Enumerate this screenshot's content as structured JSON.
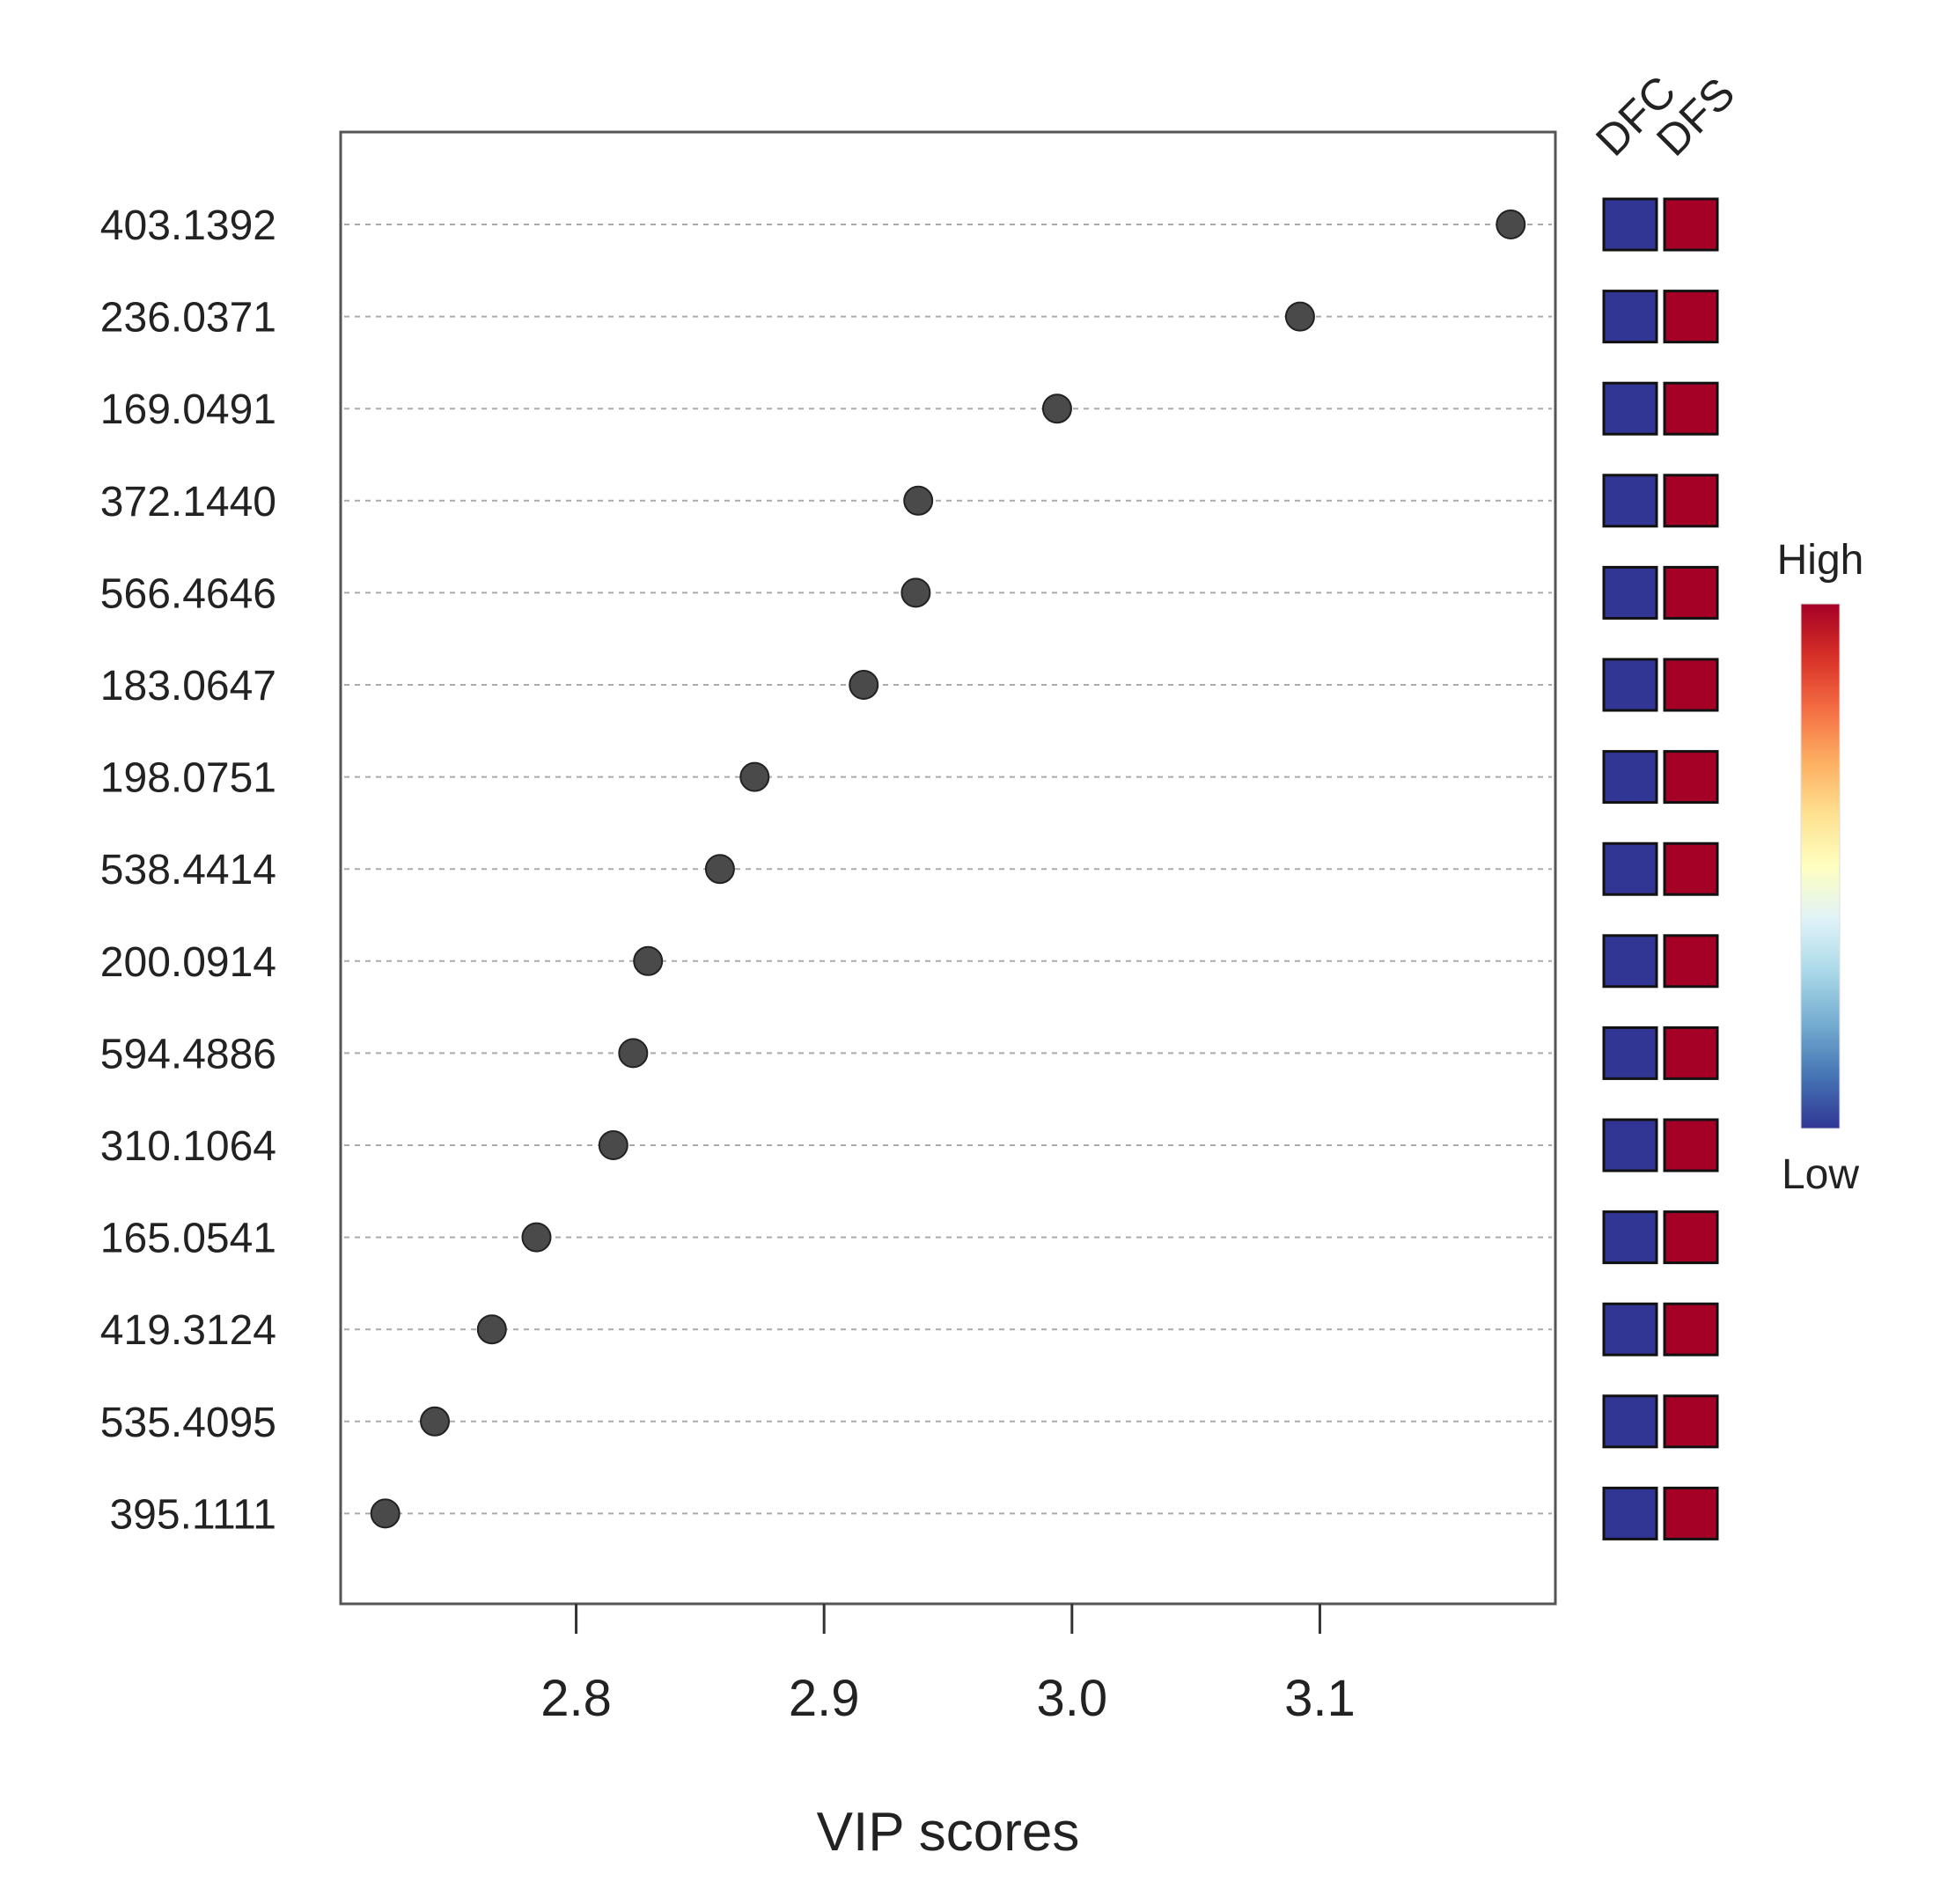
{
  "chart_data": {
    "type": "scatter",
    "subtype": "vip-dot-plot",
    "title": "",
    "xlabel": "VIP scores",
    "ylabel": "",
    "xlim": [
      2.705,
      3.195
    ],
    "xticks": [
      2.8,
      2.9,
      3.0,
      3.1
    ],
    "xtick_labels": [
      "2.8",
      "2.9",
      "3.0",
      "3.1"
    ],
    "grid": "horizontal dashed",
    "features": [
      {
        "name": "403.1392",
        "vip": 3.177,
        "DFC": "low",
        "DFS": "high"
      },
      {
        "name": "236.0371",
        "vip": 3.092,
        "DFC": "low",
        "DFS": "high"
      },
      {
        "name": "169.0491",
        "vip": 2.994,
        "DFC": "low",
        "DFS": "high"
      },
      {
        "name": "372.1440",
        "vip": 2.938,
        "DFC": "low",
        "DFS": "high"
      },
      {
        "name": "566.4646",
        "vip": 2.937,
        "DFC": "low",
        "DFS": "high"
      },
      {
        "name": "183.0647",
        "vip": 2.916,
        "DFC": "low",
        "DFS": "high"
      },
      {
        "name": "198.0751",
        "vip": 2.872,
        "DFC": "low",
        "DFS": "high"
      },
      {
        "name": "538.4414",
        "vip": 2.858,
        "DFC": "low",
        "DFS": "high"
      },
      {
        "name": "200.0914",
        "vip": 2.829,
        "DFC": "low",
        "DFS": "high"
      },
      {
        "name": "594.4886",
        "vip": 2.823,
        "DFC": "low",
        "DFS": "high"
      },
      {
        "name": "310.1064",
        "vip": 2.815,
        "DFC": "low",
        "DFS": "high"
      },
      {
        "name": "165.0541",
        "vip": 2.784,
        "DFC": "low",
        "DFS": "high"
      },
      {
        "name": "419.3124",
        "vip": 2.766,
        "DFC": "low",
        "DFS": "high"
      },
      {
        "name": "535.4095",
        "vip": 2.743,
        "DFC": "low",
        "DFS": "high"
      },
      {
        "name": "395.1111",
        "vip": 2.723,
        "DFC": "low",
        "DFS": "high"
      }
    ],
    "groups": [
      "DFC",
      "DFS"
    ],
    "color_scale": {
      "high_label": "High",
      "low_label": "Low",
      "stops": [
        "#a50026",
        "#d73027",
        "#f46d43",
        "#fdae61",
        "#fee090",
        "#ffffbf",
        "#e0f3f8",
        "#abd9e9",
        "#74add1",
        "#4575b4",
        "#313695"
      ]
    },
    "colors": {
      "low": "#313695",
      "high": "#a50026",
      "point": "#4a4a4a",
      "grid": "#aaaaaa",
      "frame": "#555555"
    }
  }
}
